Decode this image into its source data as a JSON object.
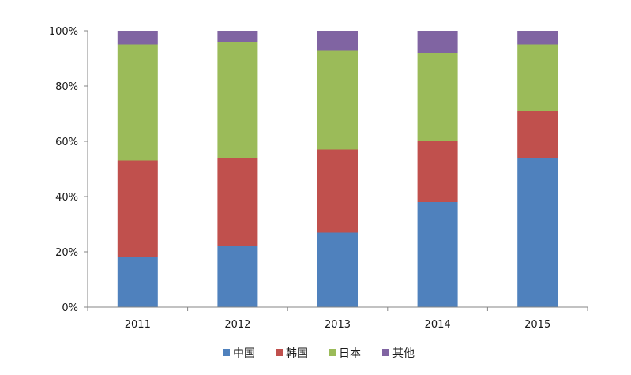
{
  "chart_data": {
    "type": "bar",
    "stacked": true,
    "normalized_percent": true,
    "categories": [
      "2011",
      "2012",
      "2013",
      "2014",
      "2015"
    ],
    "series": [
      {
        "name": "中国",
        "color": "#4F81BD",
        "values": [
          18,
          22,
          27,
          38,
          54
        ]
      },
      {
        "name": "韩国",
        "color": "#C0504D",
        "values": [
          35,
          32,
          30,
          22,
          17
        ]
      },
      {
        "name": "日本",
        "color": "#9BBB59",
        "values": [
          42,
          42,
          36,
          32,
          24
        ]
      },
      {
        "name": "其他",
        "color": "#8064A2",
        "values": [
          5,
          4,
          7,
          8,
          5
        ]
      }
    ],
    "y_ticks": [
      "0%",
      "20%",
      "40%",
      "60%",
      "80%",
      "100%"
    ],
    "ylim": [
      0,
      100
    ],
    "grid": false,
    "legend_position": "bottom",
    "title": "",
    "xlabel": "",
    "ylabel": ""
  }
}
